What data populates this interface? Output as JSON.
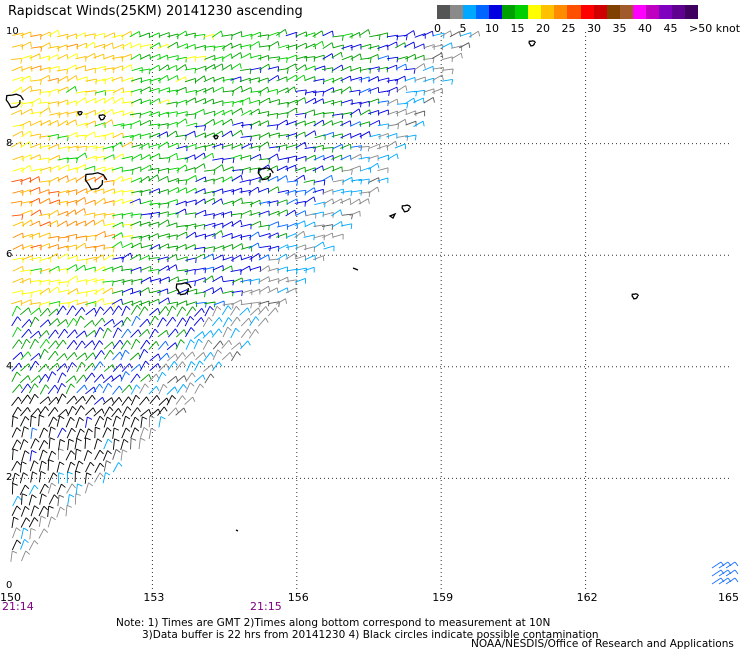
{
  "title": "Rapidscat Winds(25KM) 20141230 ascending",
  "colorbar": {
    "colors": [
      "#555555",
      "#8a8a8a",
      "#00a8ff",
      "#0066ff",
      "#0000e0",
      "#00a000",
      "#00d000",
      "#ffff00",
      "#ffc000",
      "#ff8c00",
      "#ff5000",
      "#ff0000",
      "#d00000",
      "#804000",
      "#a05a2c",
      "#ff00ff",
      "#c000c0",
      "#8000c0",
      "#600090",
      "#400060"
    ],
    "tick_labels": [
      "0",
      "5",
      "10",
      "15",
      "20",
      "25",
      "30",
      "35",
      "40",
      "45",
      ">50 knots"
    ]
  },
  "chart_data": {
    "type": "scatter",
    "description_type": "wind-barb map",
    "x_axis": {
      "ticks": [
        "150",
        "153",
        "156",
        "159",
        "162",
        "165"
      ],
      "range": [
        150,
        165
      ]
    },
    "y_axis": {
      "ticks": [
        "10",
        "8",
        "6",
        "4",
        "2",
        "0"
      ],
      "range": [
        0,
        10
      ]
    },
    "pass_times": [
      "21:14",
      "21:15"
    ],
    "swath_edge": [
      [
        150,
        0.3
      ],
      [
        154,
        3.5
      ],
      [
        157,
        6.4
      ],
      [
        159.7,
        10
      ]
    ]
  },
  "note": {
    "line1": "Note: 1) Times are GMT 2)Times along bottom correspond to measurement at 10N",
    "line2": "3)Data buffer is 22 hrs from 20141230 4) Black circles indicate possible contamination"
  },
  "credit": "NOAA/NESDIS/Office of Research and Applications"
}
